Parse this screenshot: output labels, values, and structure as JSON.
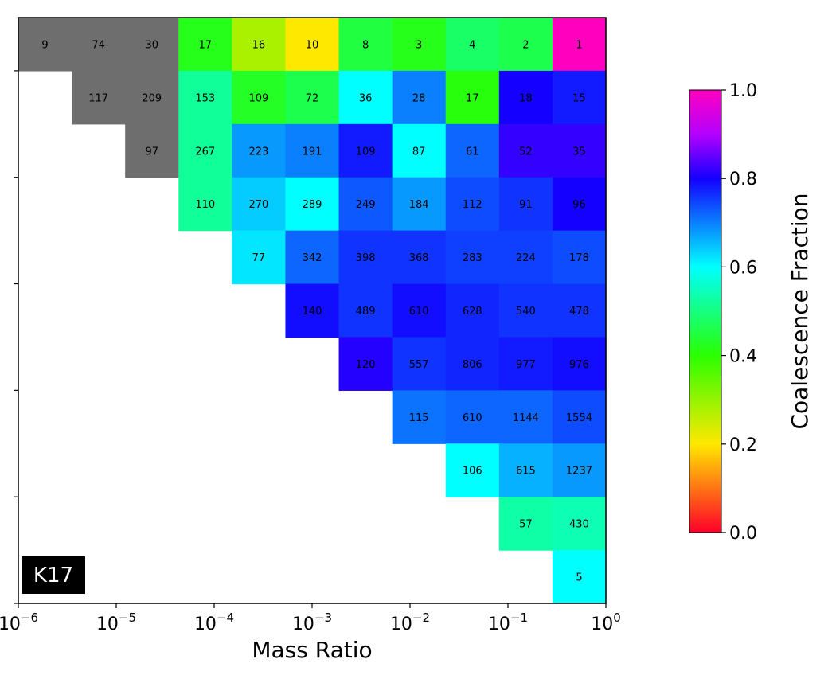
{
  "chart_data": {
    "type": "heatmap",
    "xlabel": "Mass Ratio",
    "ylabel": "",
    "x_scale": "log",
    "x_tick_labels": [
      {
        "value": -6,
        "base": "10",
        "exp": "−6"
      },
      {
        "value": -5,
        "base": "10",
        "exp": "−5"
      },
      {
        "value": -4,
        "base": "10",
        "exp": "−4"
      },
      {
        "value": -3,
        "base": "10",
        "exp": "−3"
      },
      {
        "value": -2,
        "base": "10",
        "exp": "−2"
      },
      {
        "value": -1,
        "base": "10",
        "exp": "−1"
      },
      {
        "value": 0,
        "base": "10",
        "exp": "0"
      }
    ],
    "panel_label": "K17",
    "colorbar": {
      "label": "Coalescence Fraction",
      "range": [
        0.0,
        1.0
      ],
      "ticks": [
        "0.0",
        "0.2",
        "0.4",
        "0.6",
        "0.8",
        "1.0"
      ],
      "colormap": "gist_rainbow (red → yellow → green → cyan → blue → magenta)"
    },
    "masked_color": "#6e6e6e",
    "rows": [
      [
        {
          "count": "9",
          "fraction": null
        },
        {
          "count": "74",
          "fraction": null
        },
        {
          "count": "30",
          "fraction": null
        },
        {
          "count": "17",
          "fraction": 0.42
        },
        {
          "count": "16",
          "fraction": 0.28
        },
        {
          "count": "10",
          "fraction": 0.2
        },
        {
          "count": "8",
          "fraction": 0.45
        },
        {
          "count": "3",
          "fraction": 0.42
        },
        {
          "count": "4",
          "fraction": 0.48
        },
        {
          "count": "2",
          "fraction": 0.46
        },
        {
          "count": "1",
          "fraction": 1.0
        }
      ],
      [
        null,
        {
          "count": "117",
          "fraction": null
        },
        {
          "count": "209",
          "fraction": null
        },
        {
          "count": "153",
          "fraction": 0.52
        },
        {
          "count": "109",
          "fraction": 0.43
        },
        {
          "count": "72",
          "fraction": 0.46
        },
        {
          "count": "36",
          "fraction": 0.6
        },
        {
          "count": "28",
          "fraction": 0.7
        },
        {
          "count": "17",
          "fraction": 0.41
        },
        {
          "count": "18",
          "fraction": 0.8
        },
        {
          "count": "15",
          "fraction": 0.78
        }
      ],
      [
        null,
        null,
        {
          "count": "97",
          "fraction": null
        },
        {
          "count": "267",
          "fraction": 0.52
        },
        {
          "count": "223",
          "fraction": 0.68
        },
        {
          "count": "191",
          "fraction": 0.7
        },
        {
          "count": "109",
          "fraction": 0.78
        },
        {
          "count": "87",
          "fraction": 0.6
        },
        {
          "count": "61",
          "fraction": 0.72
        },
        {
          "count": "52",
          "fraction": 0.82
        },
        {
          "count": "35",
          "fraction": 0.82
        }
      ],
      [
        null,
        null,
        null,
        {
          "count": "110",
          "fraction": 0.52
        },
        {
          "count": "270",
          "fraction": 0.64
        },
        {
          "count": "289",
          "fraction": 0.6
        },
        {
          "count": "249",
          "fraction": 0.73
        },
        {
          "count": "184",
          "fraction": 0.68
        },
        {
          "count": "112",
          "fraction": 0.74
        },
        {
          "count": "91",
          "fraction": 0.76
        },
        {
          "count": "96",
          "fraction": 0.8
        }
      ],
      [
        null,
        null,
        null,
        null,
        {
          "count": "77",
          "fraction": 0.62
        },
        {
          "count": "342",
          "fraction": 0.72
        },
        {
          "count": "398",
          "fraction": 0.76
        },
        {
          "count": "368",
          "fraction": 0.76
        },
        {
          "count": "283",
          "fraction": 0.75
        },
        {
          "count": "224",
          "fraction": 0.75
        },
        {
          "count": "178",
          "fraction": 0.74
        }
      ],
      [
        null,
        null,
        null,
        null,
        null,
        {
          "count": "140",
          "fraction": 0.79
        },
        {
          "count": "489",
          "fraction": 0.76
        },
        {
          "count": "610",
          "fraction": 0.79
        },
        {
          "count": "628",
          "fraction": 0.77
        },
        {
          "count": "540",
          "fraction": 0.76
        },
        {
          "count": "478",
          "fraction": 0.76
        }
      ],
      [
        null,
        null,
        null,
        null,
        null,
        null,
        {
          "count": "120",
          "fraction": 0.81
        },
        {
          "count": "557",
          "fraction": 0.76
        },
        {
          "count": "806",
          "fraction": 0.77
        },
        {
          "count": "977",
          "fraction": 0.78
        },
        {
          "count": "976",
          "fraction": 0.79
        }
      ],
      [
        null,
        null,
        null,
        null,
        null,
        null,
        null,
        {
          "count": "115",
          "fraction": 0.71
        },
        {
          "count": "610",
          "fraction": 0.72
        },
        {
          "count": "1144",
          "fraction": 0.72
        },
        {
          "count": "1554",
          "fraction": 0.74
        }
      ],
      [
        null,
        null,
        null,
        null,
        null,
        null,
        null,
        null,
        {
          "count": "106",
          "fraction": 0.6
        },
        {
          "count": "615",
          "fraction": 0.66
        },
        {
          "count": "1237",
          "fraction": 0.68
        }
      ],
      [
        null,
        null,
        null,
        null,
        null,
        null,
        null,
        null,
        null,
        {
          "count": "57",
          "fraction": 0.53
        },
        {
          "count": "430",
          "fraction": 0.54
        }
      ],
      [
        null,
        null,
        null,
        null,
        null,
        null,
        null,
        null,
        null,
        null,
        {
          "count": "5",
          "fraction": 0.6
        }
      ]
    ]
  }
}
